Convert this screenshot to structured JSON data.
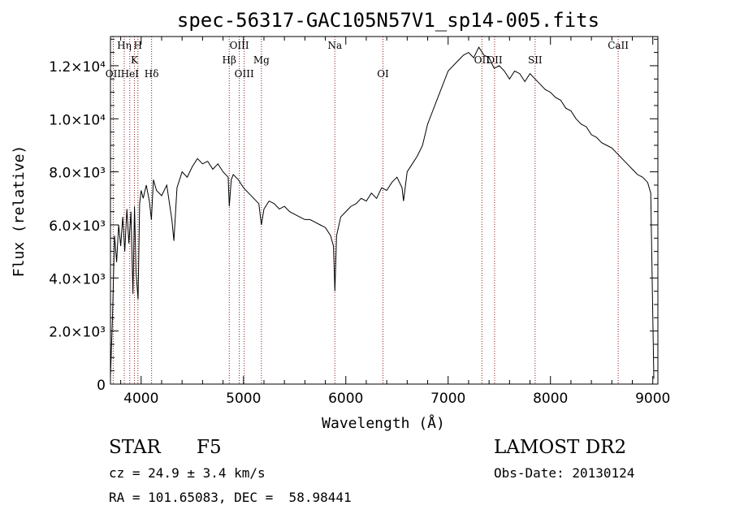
{
  "chart_data": {
    "type": "line",
    "title": "spec-56317-GAC105N57V1_sp14-005.fits",
    "xlabel": "Wavelength (Å)",
    "ylabel": "Flux (relative)",
    "xlim": [
      3700,
      9050
    ],
    "ylim": [
      0,
      13100
    ],
    "x_ticks": [
      4000,
      5000,
      6000,
      7000,
      8000,
      9000
    ],
    "x_tick_labels": [
      "4000",
      "5000",
      "6000",
      "7000",
      "8000",
      "9000"
    ],
    "y_ticks": [
      0,
      2000,
      4000,
      6000,
      8000,
      10000,
      12000
    ],
    "y_tick_labels": [
      "0",
      "2.0×10³",
      "4.0×10³",
      "6.0×10³",
      "8.0×10³",
      "1.0×10⁴",
      "1.2×10⁴"
    ],
    "grid": false,
    "line_color": "#000000",
    "marker_color": "#8b1a1a",
    "lines": [
      {
        "label": "Hη",
        "x": 3835,
        "row": 1
      },
      {
        "label": "H",
        "x": 3968,
        "row": 1
      },
      {
        "label": "K",
        "x": 3934,
        "row": 2
      },
      {
        "label": "OII",
        "x": 3727,
        "row": 3
      },
      {
        "label": "HeI",
        "x": 3889,
        "row": 3
      },
      {
        "label": "Hδ",
        "x": 4102,
        "row": 3
      },
      {
        "label": "OIII",
        "x": 4959,
        "row": 1
      },
      {
        "label": "Hβ",
        "x": 4861,
        "row": 2
      },
      {
        "label": "OIII",
        "x": 5007,
        "row": 3
      },
      {
        "label": "Mg",
        "x": 5175,
        "row": 2
      },
      {
        "label": "Na",
        "x": 5893,
        "row": 1
      },
      {
        "label": "OI",
        "x": 6363,
        "row": 3
      },
      {
        "label": "OII",
        "x": 7330,
        "row": 2
      },
      {
        "label": "OII",
        "x": 7454,
        "row": 2
      },
      {
        "label": "SII",
        "x": 7850,
        "row": 2
      },
      {
        "label": "CaII",
        "x": 8662,
        "row": 1
      }
    ],
    "spectrum": [
      [
        3700,
        300
      ],
      [
        3720,
        2500
      ],
      [
        3740,
        5600
      ],
      [
        3760,
        4600
      ],
      [
        3780,
        6000
      ],
      [
        3800,
        5200
      ],
      [
        3820,
        6300
      ],
      [
        3840,
        5000
      ],
      [
        3860,
        6600
      ],
      [
        3880,
        5300
      ],
      [
        3900,
        6500
      ],
      [
        3920,
        3400
      ],
      [
        3935,
        6700
      ],
      [
        3950,
        4200
      ],
      [
        3970,
        3200
      ],
      [
        3985,
        6800
      ],
      [
        4000,
        7300
      ],
      [
        4020,
        7000
      ],
      [
        4050,
        7500
      ],
      [
        4080,
        6900
      ],
      [
        4100,
        6200
      ],
      [
        4120,
        7700
      ],
      [
        4150,
        7300
      ],
      [
        4200,
        7100
      ],
      [
        4250,
        7500
      ],
      [
        4300,
        6200
      ],
      [
        4320,
        5400
      ],
      [
        4350,
        7400
      ],
      [
        4400,
        8000
      ],
      [
        4450,
        7800
      ],
      [
        4500,
        8200
      ],
      [
        4550,
        8500
      ],
      [
        4600,
        8300
      ],
      [
        4650,
        8400
      ],
      [
        4700,
        8100
      ],
      [
        4750,
        8300
      ],
      [
        4800,
        8000
      ],
      [
        4850,
        7800
      ],
      [
        4861,
        6700
      ],
      [
        4880,
        7700
      ],
      [
        4900,
        7900
      ],
      [
        4950,
        7700
      ],
      [
        5000,
        7400
      ],
      [
        5050,
        7200
      ],
      [
        5100,
        7000
      ],
      [
        5150,
        6800
      ],
      [
        5175,
        6000
      ],
      [
        5200,
        6600
      ],
      [
        5250,
        6900
      ],
      [
        5300,
        6800
      ],
      [
        5350,
        6600
      ],
      [
        5400,
        6700
      ],
      [
        5450,
        6500
      ],
      [
        5500,
        6400
      ],
      [
        5550,
        6300
      ],
      [
        5600,
        6200
      ],
      [
        5650,
        6200
      ],
      [
        5700,
        6100
      ],
      [
        5750,
        6000
      ],
      [
        5800,
        5900
      ],
      [
        5850,
        5600
      ],
      [
        5880,
        5200
      ],
      [
        5893,
        3500
      ],
      [
        5910,
        5600
      ],
      [
        5950,
        6300
      ],
      [
        6000,
        6500
      ],
      [
        6050,
        6700
      ],
      [
        6100,
        6800
      ],
      [
        6150,
        7000
      ],
      [
        6200,
        6900
      ],
      [
        6250,
        7200
      ],
      [
        6300,
        7000
      ],
      [
        6350,
        7400
      ],
      [
        6400,
        7300
      ],
      [
        6450,
        7600
      ],
      [
        6500,
        7800
      ],
      [
        6550,
        7400
      ],
      [
        6564,
        6900
      ],
      [
        6600,
        8000
      ],
      [
        6650,
        8300
      ],
      [
        6700,
        8600
      ],
      [
        6750,
        9000
      ],
      [
        6800,
        9800
      ],
      [
        6850,
        10300
      ],
      [
        6900,
        10800
      ],
      [
        6950,
        11300
      ],
      [
        7000,
        11800
      ],
      [
        7050,
        12000
      ],
      [
        7100,
        12200
      ],
      [
        7150,
        12400
      ],
      [
        7200,
        12500
      ],
      [
        7250,
        12300
      ],
      [
        7300,
        12700
      ],
      [
        7350,
        12400
      ],
      [
        7400,
        12300
      ],
      [
        7450,
        11900
      ],
      [
        7500,
        12000
      ],
      [
        7550,
        11800
      ],
      [
        7600,
        11500
      ],
      [
        7650,
        11800
      ],
      [
        7700,
        11700
      ],
      [
        7750,
        11400
      ],
      [
        7800,
        11700
      ],
      [
        7850,
        11500
      ],
      [
        7900,
        11300
      ],
      [
        7950,
        11100
      ],
      [
        8000,
        11000
      ],
      [
        8050,
        10800
      ],
      [
        8100,
        10700
      ],
      [
        8150,
        10400
      ],
      [
        8200,
        10300
      ],
      [
        8250,
        10000
      ],
      [
        8300,
        9800
      ],
      [
        8350,
        9700
      ],
      [
        8400,
        9400
      ],
      [
        8450,
        9300
      ],
      [
        8500,
        9100
      ],
      [
        8550,
        9000
      ],
      [
        8600,
        8900
      ],
      [
        8650,
        8700
      ],
      [
        8700,
        8500
      ],
      [
        8750,
        8300
      ],
      [
        8800,
        8100
      ],
      [
        8850,
        7900
      ],
      [
        8900,
        7800
      ],
      [
        8950,
        7600
      ],
      [
        8980,
        7200
      ],
      [
        9000,
        2600
      ],
      [
        9010,
        200
      ]
    ]
  },
  "info": {
    "object_class": "STAR",
    "subclass": "F5",
    "survey": "LAMOST DR2",
    "redshift": "cz = 24.9 ± 3.4 km/s",
    "obs_date": "Obs-Date: 20130124",
    "coords": "RA = 101.65083, DEC =  58.98441"
  }
}
